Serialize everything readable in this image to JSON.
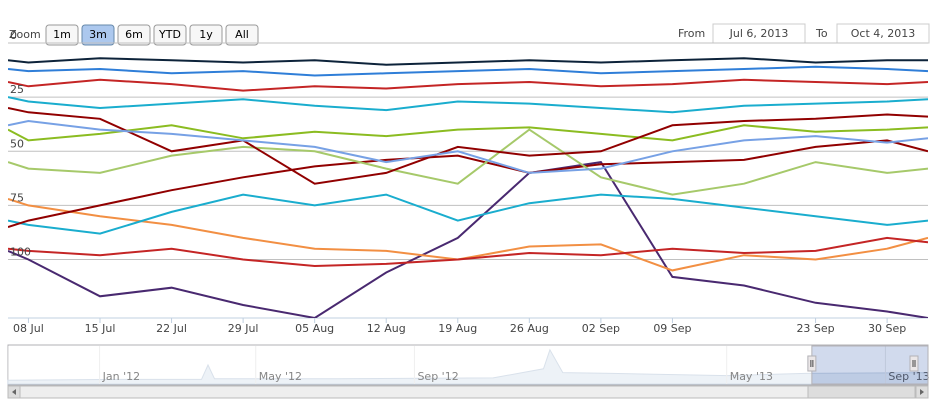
{
  "chart_data": {
    "type": "line",
    "range_selector": {
      "zoom_label": "Zoom",
      "buttons": [
        "1m",
        "3m",
        "6m",
        "YTD",
        "1y",
        "All"
      ],
      "selected_index": 1,
      "from_label": "From",
      "from_value": "Jul 6, 2013",
      "to_label": "To",
      "to_value": "Oct 4, 2013"
    },
    "x": [
      "2013-07-06",
      "2013-07-08",
      "2013-07-15",
      "2013-07-22",
      "2013-07-29",
      "2013-08-05",
      "2013-08-12",
      "2013-08-19",
      "2013-08-26",
      "2013-09-02",
      "2013-09-09",
      "2013-09-16",
      "2013-09-23",
      "2013-09-30",
      "2013-10-04"
    ],
    "xlim": [
      "2013-07-06",
      "2013-10-04"
    ],
    "xticks": [
      {
        "value": "2013-07-08",
        "label": "08 Jul"
      },
      {
        "value": "2013-07-15",
        "label": "15 Jul"
      },
      {
        "value": "2013-07-22",
        "label": "22 Jul"
      },
      {
        "value": "2013-07-29",
        "label": "29 Jul"
      },
      {
        "value": "2013-08-05",
        "label": "05 Aug"
      },
      {
        "value": "2013-08-12",
        "label": "12 Aug"
      },
      {
        "value": "2013-08-19",
        "label": "19 Aug"
      },
      {
        "value": "2013-08-26",
        "label": "26 Aug"
      },
      {
        "value": "2013-09-02",
        "label": "02 Sep"
      },
      {
        "value": "2013-09-09",
        "label": "09 Sep"
      },
      {
        "value": "2013-09-23",
        "label": "23 Sep"
      },
      {
        "value": "2013-09-30",
        "label": "30 Sep"
      }
    ],
    "ylim": [
      0,
      127
    ],
    "y_reversed": true,
    "yticks": [
      0,
      25,
      50,
      75,
      100
    ],
    "grid": true,
    "series": [
      {
        "color": "#0d233a",
        "values": [
          8,
          9,
          7,
          8,
          9,
          8,
          10,
          9,
          8,
          9,
          8,
          7,
          9,
          8,
          8
        ]
      },
      {
        "color": "#2f7ed8",
        "values": [
          12,
          13,
          12,
          14,
          13,
          15,
          14,
          13,
          12,
          14,
          13,
          12,
          11,
          12,
          13
        ]
      },
      {
        "color": "#c42525",
        "values": [
          18,
          20,
          17,
          19,
          22,
          20,
          21,
          19,
          18,
          20,
          19,
          17,
          18,
          19,
          18
        ]
      },
      {
        "color": "#1aadce",
        "values": [
          25,
          27,
          30,
          28,
          26,
          29,
          31,
          27,
          28,
          30,
          32,
          29,
          28,
          27,
          26
        ]
      },
      {
        "color": "#8bbc21",
        "values": [
          40,
          45,
          42,
          38,
          44,
          41,
          43,
          40,
          39,
          42,
          45,
          38,
          41,
          40,
          39
        ]
      },
      {
        "color": "#492970",
        "values": [
          96,
          100,
          117,
          113,
          121,
          127,
          106,
          90,
          60,
          55,
          108,
          112,
          120,
          124,
          127
        ]
      },
      {
        "color": "#f28f43",
        "values": [
          72,
          75,
          80,
          84,
          90,
          95,
          96,
          100,
          94,
          93,
          105,
          98,
          100,
          95,
          90
        ]
      },
      {
        "color": "#1aadce",
        "values": [
          82,
          84,
          88,
          78,
          70,
          75,
          70,
          82,
          74,
          70,
          72,
          76,
          80,
          84,
          82
        ]
      },
      {
        "color": "#910000",
        "values": [
          85,
          82,
          75,
          68,
          62,
          57,
          54,
          52,
          60,
          56,
          55,
          54,
          48,
          45,
          50
        ]
      },
      {
        "color": "#a6c96a",
        "values": [
          55,
          58,
          60,
          52,
          48,
          50,
          58,
          65,
          40,
          62,
          70,
          65,
          55,
          60,
          58
        ]
      },
      {
        "color": "#c42525",
        "values": [
          95,
          96,
          98,
          95,
          100,
          103,
          102,
          100,
          97,
          98,
          95,
          97,
          96,
          90,
          92
        ]
      },
      {
        "color": "#910000",
        "values": [
          30,
          32,
          35,
          50,
          45,
          65,
          60,
          48,
          52,
          50,
          38,
          36,
          35,
          33,
          34
        ]
      },
      {
        "color": "#77a1e5",
        "values": [
          38,
          36,
          40,
          42,
          45,
          48,
          55,
          50,
          60,
          58,
          50,
          45,
          43,
          46,
          44
        ]
      }
    ],
    "navigator": {
      "xlim": [
        "2011-10-22",
        "2013-10-04"
      ],
      "ylim": [
        0,
        100
      ],
      "x": [
        "2011-10-22",
        "2012-01-15",
        "2012-03-20",
        "2012-03-25",
        "2012-03-30",
        "2012-07-01",
        "2012-11-01",
        "2012-12-10",
        "2012-12-15",
        "2012-12-25",
        "2013-02-01",
        "2013-05-01",
        "2013-07-01",
        "2013-10-04"
      ],
      "values": [
        10,
        12,
        12,
        50,
        14,
        14,
        16,
        40,
        90,
        30,
        28,
        22,
        28,
        30
      ],
      "xticks": [
        {
          "value": "2012-01-01",
          "label": "Jan '12"
        },
        {
          "value": "2012-05-01",
          "label": "May '12"
        },
        {
          "value": "2012-09-01",
          "label": "Sep '12"
        },
        {
          "value": "2013-05-01",
          "label": "May '13"
        },
        {
          "value": "2013-09-01",
          "label": "Sep '13"
        }
      ]
    }
  }
}
